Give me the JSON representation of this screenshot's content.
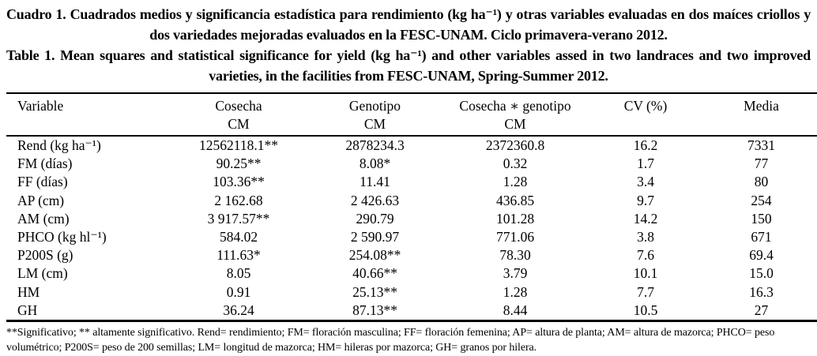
{
  "caption": {
    "spanish": "Cuadro 1. Cuadrados medios y significancia estadística para rendimiento (kg ha⁻¹) y otras variables evaluadas en dos maíces criollos y dos variedades mejoradas evaluados en la FESC-UNAM. Ciclo primavera-verano 2012.",
    "english": "Table 1. Mean squares and statistical significance for yield (kg ha⁻¹) and other variables assed in two landraces and two improved varieties, in the facilities from FESC-UNAM, Spring-Summer 2012."
  },
  "table": {
    "columns": [
      {
        "label": "Variable",
        "sublabel": ""
      },
      {
        "label": "Cosecha",
        "sublabel": "CM"
      },
      {
        "label": "Genotipo",
        "sublabel": "CM"
      },
      {
        "label": "Cosecha ∗ genotipo",
        "sublabel": "CM"
      },
      {
        "label": "CV (%)",
        "sublabel": ""
      },
      {
        "label": "Media",
        "sublabel": ""
      }
    ],
    "rows": [
      {
        "variable": "Rend (kg ha⁻¹)",
        "cosecha": "12562118.1**",
        "genotipo": "2878234.3",
        "interaction": "2372360.8",
        "cv": "16.2",
        "media": "7331"
      },
      {
        "variable": "FM (días)",
        "cosecha": "90.25**",
        "genotipo": "8.08*",
        "interaction": "0.32",
        "cv": "1.7",
        "media": "77"
      },
      {
        "variable": "FF (días)",
        "cosecha": "103.36**",
        "genotipo": "11.41",
        "interaction": "1.28",
        "cv": "3.4",
        "media": "80"
      },
      {
        "variable": "AP (cm)",
        "cosecha": "2 162.68",
        "genotipo": "2 426.63",
        "interaction": "436.85",
        "cv": "9.7",
        "media": "254"
      },
      {
        "variable": "AM (cm)",
        "cosecha": "3 917.57**",
        "genotipo": "290.79",
        "interaction": "101.28",
        "cv": "14.2",
        "media": "150"
      },
      {
        "variable": "PHCO (kg hl⁻¹)",
        "cosecha": "584.02",
        "genotipo": "2 590.97",
        "interaction": "771.06",
        "cv": "3.8",
        "media": "671"
      },
      {
        "variable": "P200S (g)",
        "cosecha": "111.63*",
        "genotipo": "254.08**",
        "interaction": "78.30",
        "cv": "7.6",
        "media": "69.4"
      },
      {
        "variable": "LM (cm)",
        "cosecha": "8.05",
        "genotipo": "40.66**",
        "interaction": "3.79",
        "cv": "10.1",
        "media": "15.0"
      },
      {
        "variable": "HM",
        "cosecha": "0.91",
        "genotipo": "25.13**",
        "interaction": "1.28",
        "cv": "7.7",
        "media": "16.3"
      },
      {
        "variable": "GH",
        "cosecha": "36.24",
        "genotipo": "87.13**",
        "interaction": "8.44",
        "cv": "10.5",
        "media": "27"
      }
    ]
  },
  "footnote": "**Significativo; ** altamente significativo. Rend= rendimiento; FM= floración masculina; FF= floración femenina; AP= altura de planta; AM= altura de mazorca; PHCO= peso volumétrico; P200S= peso de 200 semillas; LM= longitud de mazorca; HM= hileras por mazorca; GH= granos por hilera."
}
